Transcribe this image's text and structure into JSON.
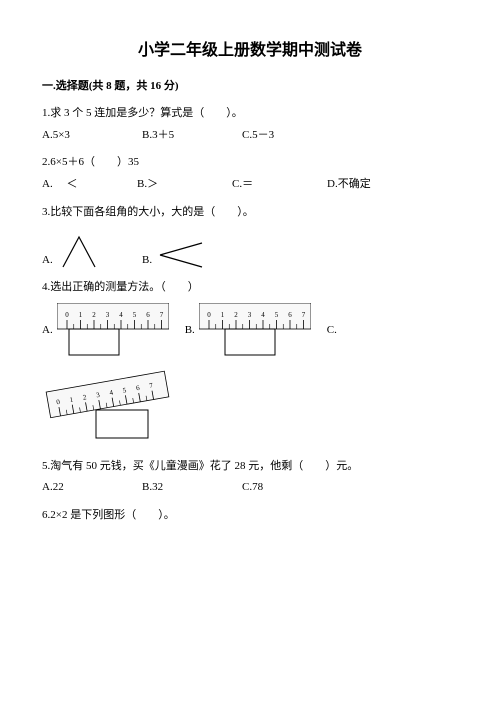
{
  "title": "小学二年级上册数学期中测试卷",
  "section1": "一.选择题(共 8 题，共 16 分)",
  "q1": {
    "text": "1.求 3 个 5 连加是多少？算式是（　　）。",
    "a": "A.5×3",
    "b": "B.3＋5",
    "c": "C.5－3"
  },
  "q2": {
    "text": "2.6×5＋6（　　）35",
    "a": "A. 　＜",
    "b": "B.＞",
    "c": "C.＝",
    "d": "D.不确定"
  },
  "q3": {
    "text": "3.比较下面各组角的大小，大的是（　　）。",
    "a": "A.",
    "b": "B."
  },
  "q4": {
    "text": "4.选出正确的测量方法。（　　）",
    "a": "A.",
    "b": "B.",
    "c": "C."
  },
  "q5": {
    "text": "5.淘气有 50 元钱，买《儿童漫画》花了 28 元，他剩（　　）元。",
    "a": "A.22",
    "b": "B.32",
    "c": "C.78"
  },
  "q6": {
    "text": "6.2×2 是下列图形（　　）。"
  },
  "ruler": {
    "ticks": [
      "0",
      "1",
      "2",
      "3",
      "4",
      "5",
      "6",
      "7"
    ]
  },
  "colors": {
    "stroke": "#000000",
    "fill": "#ffffff",
    "ruler_body": "#f5f5f5"
  }
}
